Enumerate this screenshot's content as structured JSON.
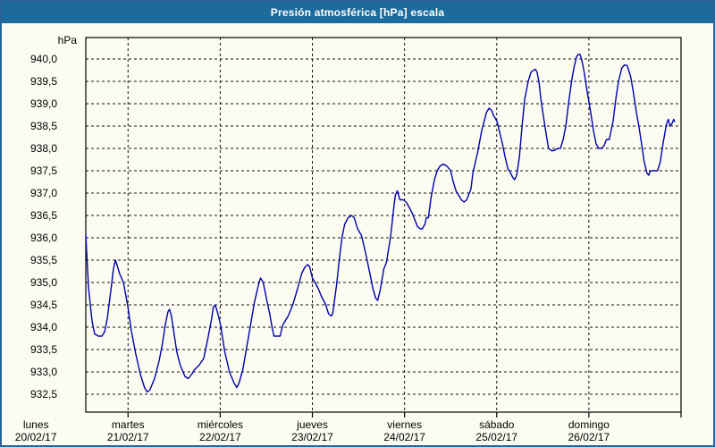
{
  "window": {
    "title": "Presión atmosférica [hPa] escala"
  },
  "colors": {
    "titlebar": "#1d6a9c",
    "frame": "#2a6395",
    "background": "#fcfcf2",
    "line": "#0000aa",
    "grid": "#141414",
    "text": "#000000"
  },
  "chart_data": {
    "type": "line",
    "title": "Presión atmosférica [hPa] escala",
    "ylabel_unit": "hPa",
    "grid": "dashed",
    "legend": "none",
    "ylim": [
      932.1,
      940.48
    ],
    "xlim_hours": [
      13.0,
      168
    ],
    "y_ticks": [
      {
        "label": "940,0",
        "value": 940.0
      },
      {
        "label": "939,5",
        "value": 939.5
      },
      {
        "label": "939,0",
        "value": 939.0
      },
      {
        "label": "938,5",
        "value": 938.5
      },
      {
        "label": "938,0",
        "value": 938.0
      },
      {
        "label": "937,5",
        "value": 937.5
      },
      {
        "label": "937,0",
        "value": 937.0
      },
      {
        "label": "936,5",
        "value": 936.5
      },
      {
        "label": "936,0",
        "value": 936.0
      },
      {
        "label": "935,5",
        "value": 935.5
      },
      {
        "label": "935,0",
        "value": 935.0
      },
      {
        "label": "934,5",
        "value": 934.5
      },
      {
        "label": "934,0",
        "value": 934.0
      },
      {
        "label": "933,5",
        "value": 933.5
      },
      {
        "label": "933,0",
        "value": 933.0
      },
      {
        "label": "932,5",
        "value": 932.5
      }
    ],
    "x_ticks": [
      {
        "day": "lunes",
        "date": "20/02/17",
        "hour": 0
      },
      {
        "day": "martes",
        "date": "21/02/17",
        "hour": 24
      },
      {
        "day": "miércoles",
        "date": "22/02/17",
        "hour": 48
      },
      {
        "day": "jueves",
        "date": "23/02/17",
        "hour": 72
      },
      {
        "day": "viernes",
        "date": "24/02/17",
        "hour": 96
      },
      {
        "day": "sábado",
        "date": "25/02/17",
        "hour": 120
      },
      {
        "day": "domingo",
        "date": "26/02/17",
        "hour": 144
      }
    ],
    "series": [
      {
        "name": "Presión atmosférica",
        "color": "#0000aa",
        "points": [
          [
            13.0,
            936.05
          ],
          [
            13.7,
            934.9
          ],
          [
            14.6,
            934.15
          ],
          [
            15.3,
            933.85
          ],
          [
            16.3,
            933.8
          ],
          [
            17.2,
            933.8
          ],
          [
            17.9,
            933.9
          ],
          [
            18.6,
            934.2
          ],
          [
            19.5,
            934.8
          ],
          [
            20.2,
            935.3
          ],
          [
            20.7,
            935.5
          ],
          [
            21.1,
            935.4
          ],
          [
            21.8,
            935.2
          ],
          [
            22.8,
            935.0
          ],
          [
            23.9,
            934.5
          ],
          [
            24.9,
            933.9
          ],
          [
            26.0,
            933.4
          ],
          [
            27.2,
            932.95
          ],
          [
            28.3,
            932.65
          ],
          [
            29.0,
            932.55
          ],
          [
            29.7,
            932.6
          ],
          [
            30.9,
            932.85
          ],
          [
            32.1,
            933.25
          ],
          [
            33.0,
            933.65
          ],
          [
            33.7,
            934.05
          ],
          [
            34.4,
            934.35
          ],
          [
            34.8,
            934.4
          ],
          [
            35.3,
            934.25
          ],
          [
            36.0,
            933.85
          ],
          [
            36.7,
            933.45
          ],
          [
            37.6,
            933.15
          ],
          [
            38.8,
            932.9
          ],
          [
            39.7,
            932.85
          ],
          [
            40.6,
            932.95
          ],
          [
            41.3,
            933.05
          ],
          [
            42.5,
            933.15
          ],
          [
            43.7,
            933.3
          ],
          [
            44.8,
            933.75
          ],
          [
            45.8,
            934.2
          ],
          [
            46.2,
            934.45
          ],
          [
            46.7,
            934.5
          ],
          [
            47.4,
            934.3
          ],
          [
            48.1,
            934.05
          ],
          [
            49.2,
            933.45
          ],
          [
            50.4,
            933.0
          ],
          [
            51.6,
            932.75
          ],
          [
            52.3,
            932.65
          ],
          [
            52.9,
            932.75
          ],
          [
            53.9,
            933.05
          ],
          [
            54.6,
            933.4
          ],
          [
            55.7,
            933.95
          ],
          [
            56.9,
            934.55
          ],
          [
            58.1,
            935.0
          ],
          [
            58.5,
            935.1
          ],
          [
            59.2,
            935.0
          ],
          [
            59.9,
            934.7
          ],
          [
            60.9,
            934.3
          ],
          [
            61.5,
            934.0
          ],
          [
            62.0,
            933.8
          ],
          [
            62.9,
            933.8
          ],
          [
            63.6,
            933.8
          ],
          [
            64.3,
            934.05
          ],
          [
            65.0,
            934.15
          ],
          [
            65.7,
            934.25
          ],
          [
            66.9,
            934.5
          ],
          [
            68.1,
            934.85
          ],
          [
            69.2,
            935.2
          ],
          [
            70.1,
            935.35
          ],
          [
            70.8,
            935.4
          ],
          [
            71.3,
            935.35
          ],
          [
            72.0,
            935.1
          ],
          [
            72.7,
            935.0
          ],
          [
            73.6,
            934.85
          ],
          [
            74.3,
            934.7
          ],
          [
            75.5,
            934.5
          ],
          [
            76.2,
            934.3
          ],
          [
            76.9,
            934.25
          ],
          [
            77.3,
            934.3
          ],
          [
            78.3,
            934.95
          ],
          [
            79.0,
            935.5
          ],
          [
            79.7,
            936.0
          ],
          [
            80.4,
            936.3
          ],
          [
            81.3,
            936.45
          ],
          [
            82.2,
            936.5
          ],
          [
            82.9,
            936.45
          ],
          [
            83.8,
            936.2
          ],
          [
            84.8,
            936.05
          ],
          [
            85.9,
            935.65
          ],
          [
            87.1,
            935.15
          ],
          [
            87.8,
            934.85
          ],
          [
            88.5,
            934.65
          ],
          [
            89.0,
            934.6
          ],
          [
            89.7,
            934.85
          ],
          [
            90.6,
            935.3
          ],
          [
            91.3,
            935.45
          ],
          [
            92.4,
            936.05
          ],
          [
            93.1,
            936.6
          ],
          [
            93.6,
            936.95
          ],
          [
            94.1,
            937.05
          ],
          [
            94.8,
            936.85
          ],
          [
            95.7,
            936.85
          ],
          [
            96.4,
            936.8
          ],
          [
            97.1,
            936.7
          ],
          [
            98.0,
            936.55
          ],
          [
            98.7,
            936.4
          ],
          [
            99.4,
            936.25
          ],
          [
            100.1,
            936.2
          ],
          [
            100.6,
            936.2
          ],
          [
            101.3,
            936.3
          ],
          [
            101.7,
            936.45
          ],
          [
            102.2,
            936.45
          ],
          [
            102.9,
            936.9
          ],
          [
            103.8,
            937.3
          ],
          [
            104.5,
            937.5
          ],
          [
            105.2,
            937.6
          ],
          [
            106.1,
            937.65
          ],
          [
            107.1,
            937.6
          ],
          [
            108.0,
            937.5
          ],
          [
            108.7,
            937.25
          ],
          [
            109.4,
            937.05
          ],
          [
            110.1,
            936.95
          ],
          [
            110.8,
            936.85
          ],
          [
            111.5,
            936.8
          ],
          [
            112.2,
            936.85
          ],
          [
            112.9,
            937.0
          ],
          [
            113.3,
            937.1
          ],
          [
            113.8,
            937.45
          ],
          [
            115.0,
            937.9
          ],
          [
            116.1,
            938.4
          ],
          [
            117.3,
            938.8
          ],
          [
            118.0,
            938.9
          ],
          [
            118.7,
            938.85
          ],
          [
            119.1,
            938.75
          ],
          [
            120.1,
            938.6
          ],
          [
            120.8,
            938.35
          ],
          [
            121.5,
            938.1
          ],
          [
            122.2,
            937.8
          ],
          [
            122.9,
            937.55
          ],
          [
            123.6,
            937.45
          ],
          [
            124.2,
            937.35
          ],
          [
            124.7,
            937.3
          ],
          [
            125.2,
            937.4
          ],
          [
            125.9,
            937.8
          ],
          [
            126.6,
            938.5
          ],
          [
            127.3,
            939.1
          ],
          [
            128.2,
            939.5
          ],
          [
            128.9,
            939.7
          ],
          [
            129.6,
            939.75
          ],
          [
            130.1,
            939.77
          ],
          [
            130.5,
            939.7
          ],
          [
            131.0,
            939.5
          ],
          [
            131.5,
            939.1
          ],
          [
            132.2,
            938.7
          ],
          [
            132.9,
            938.3
          ],
          [
            133.5,
            938.0
          ],
          [
            134.2,
            937.95
          ],
          [
            134.9,
            937.95
          ],
          [
            135.9,
            938.0
          ],
          [
            136.6,
            938.0
          ],
          [
            137.3,
            938.2
          ],
          [
            138.0,
            938.5
          ],
          [
            138.7,
            939.0
          ],
          [
            139.4,
            939.45
          ],
          [
            140.1,
            939.8
          ],
          [
            140.8,
            940.05
          ],
          [
            141.2,
            940.1
          ],
          [
            141.7,
            940.1
          ],
          [
            142.1,
            940.0
          ],
          [
            142.8,
            939.7
          ],
          [
            143.5,
            939.3
          ],
          [
            144.5,
            938.8
          ],
          [
            145.2,
            938.4
          ],
          [
            145.9,
            938.1
          ],
          [
            146.6,
            938.0
          ],
          [
            147.2,
            938.0
          ],
          [
            147.9,
            938.05
          ],
          [
            148.6,
            938.2
          ],
          [
            149.3,
            938.2
          ],
          [
            150.3,
            938.6
          ],
          [
            151.0,
            939.1
          ],
          [
            151.7,
            939.5
          ],
          [
            152.6,
            939.8
          ],
          [
            153.3,
            939.87
          ],
          [
            154.0,
            939.85
          ],
          [
            154.9,
            939.6
          ],
          [
            155.6,
            939.25
          ],
          [
            156.3,
            938.85
          ],
          [
            157.2,
            938.4
          ],
          [
            157.9,
            938.0
          ],
          [
            158.4,
            937.7
          ],
          [
            159.1,
            937.45
          ],
          [
            159.6,
            937.4
          ],
          [
            160.0,
            937.5
          ],
          [
            161.0,
            937.5
          ],
          [
            161.9,
            937.5
          ],
          [
            162.6,
            937.7
          ],
          [
            163.3,
            938.1
          ],
          [
            164.2,
            938.55
          ],
          [
            164.7,
            938.65
          ],
          [
            165.1,
            938.5
          ],
          [
            165.6,
            938.55
          ],
          [
            166.1,
            938.65
          ],
          [
            166.3,
            938.6
          ]
        ]
      }
    ]
  }
}
